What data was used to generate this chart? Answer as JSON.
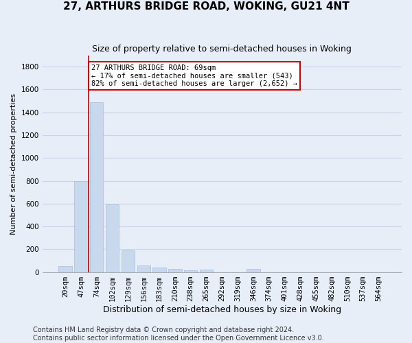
{
  "title": "27, ARTHURS BRIDGE ROAD, WOKING, GU21 4NT",
  "subtitle": "Size of property relative to semi-detached houses in Woking",
  "xlabel": "Distribution of semi-detached houses by size in Woking",
  "ylabel": "Number of semi-detached properties",
  "bar_color": "#c9d9ed",
  "bar_edge_color": "#a8bdd4",
  "grid_color": "#c8d4e8",
  "background_color": "#e8eef8",
  "bin_labels": [
    "20sqm",
    "47sqm",
    "74sqm",
    "102sqm",
    "129sqm",
    "156sqm",
    "183sqm",
    "210sqm",
    "238sqm",
    "265sqm",
    "292sqm",
    "319sqm",
    "346sqm",
    "374sqm",
    "401sqm",
    "428sqm",
    "455sqm",
    "482sqm",
    "510sqm",
    "537sqm",
    "564sqm"
  ],
  "bar_values": [
    50,
    800,
    1490,
    590,
    190,
    60,
    40,
    25,
    15,
    20,
    0,
    0,
    25,
    0,
    0,
    0,
    0,
    0,
    0,
    0,
    0
  ],
  "ylim": [
    0,
    1900
  ],
  "yticks": [
    0,
    200,
    400,
    600,
    800,
    1000,
    1200,
    1400,
    1600,
    1800
  ],
  "property_bin_index": 1.5,
  "vline_color": "#cc0000",
  "annotation_text": "27 ARTHURS BRIDGE ROAD: 69sqm\n← 17% of semi-detached houses are smaller (543)\n82% of semi-detached houses are larger (2,652) →",
  "annotation_box_color": "#ffffff",
  "annotation_box_edge": "#cc0000",
  "footnote": "Contains HM Land Registry data © Crown copyright and database right 2024.\nContains public sector information licensed under the Open Government Licence v3.0.",
  "footnote_fontsize": 7,
  "title_fontsize": 11,
  "subtitle_fontsize": 9,
  "xlabel_fontsize": 9,
  "ylabel_fontsize": 8,
  "tick_fontsize": 7.5,
  "annotation_fontsize": 7.5
}
